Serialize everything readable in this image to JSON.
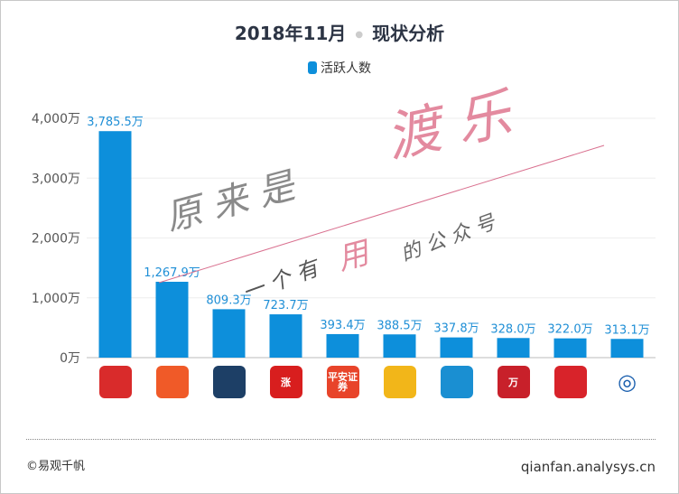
{
  "chart_data": {
    "type": "bar",
    "title": "2018年11月",
    "title_suffix": "现状分析",
    "legend": [
      {
        "name": "活跃人数",
        "color": "#0d8fdb"
      }
    ],
    "legend_placement": "top",
    "series": [
      {
        "name": "活跃人数",
        "values": [
          3785.5,
          1267.9,
          809.3,
          723.7,
          393.4,
          388.5,
          337.8,
          328.0,
          322.0,
          313.1
        ]
      }
    ],
    "data_labels": [
      "3,785.5万",
      "1,267.9万",
      "809.3万",
      "723.7万",
      "393.4万",
      "388.5万",
      "337.8万",
      "328.0万",
      "322.0万",
      "313.1万"
    ],
    "categories_icons": [
      "app-icon-red-bars",
      "app-icon-orange-wings",
      "app-icon-blue-chart",
      "app-icon-zhang",
      "app-icon-pingan",
      "app-icon-yellow",
      "app-icon-blue-g",
      "app-icon-red-square",
      "app-icon-citic",
      "app-icon-blue-circle"
    ],
    "icon_colors": [
      "#d92b2b",
      "#f05a28",
      "#1d3f66",
      "#d81e1e",
      "#e8442a",
      "#f2b619",
      "#1a8fd2",
      "#c8202a",
      "#d8232a",
      "#ffffff"
    ],
    "icon_texts": [
      "",
      "",
      "",
      "涨",
      "平安证券",
      "",
      "",
      "万",
      "",
      ""
    ],
    "yticks": [
      "0万",
      "1,000万",
      "2,000万",
      "3,000万",
      "4,000万"
    ],
    "ylim": [
      0,
      4000
    ],
    "grid": true,
    "bar_color": "#0d8fdb"
  },
  "watermark": {
    "line1": "原 来 是",
    "line1_pink": "渡 乐",
    "line2a": "一 个 有",
    "line2_pink": "用",
    "line2b": "的 公 众 号"
  },
  "footer": {
    "copyright": "©易观千帆",
    "site": "qianfan.analysys.cn"
  }
}
